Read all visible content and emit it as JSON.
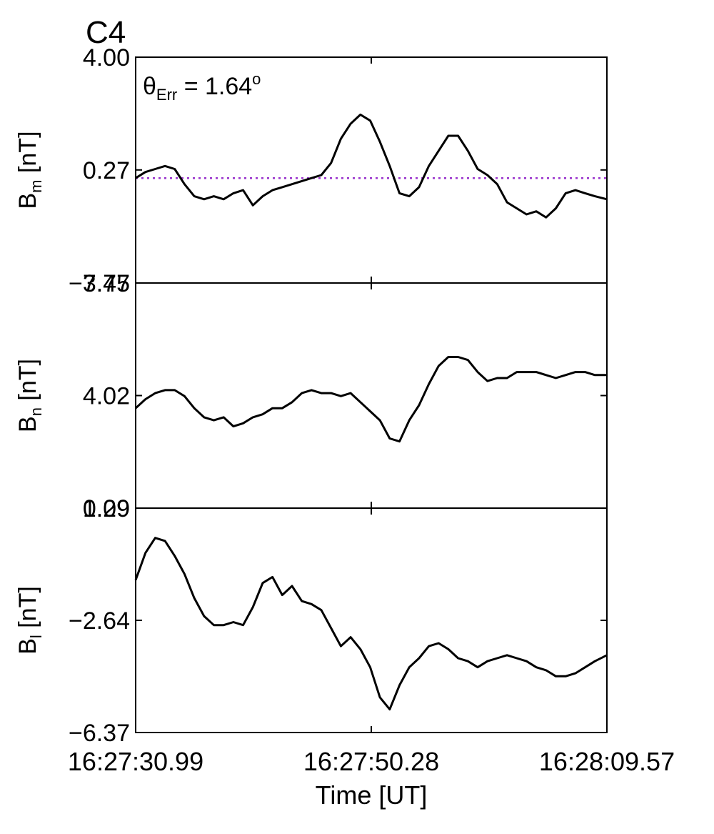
{
  "figure": {
    "title": "C4",
    "title_color": "#e8161b",
    "annotation_symbol": "θ",
    "annotation_sub": "Err",
    "annotation_eq": " =  1.64",
    "annotation_sup": "o"
  },
  "chart_data": [
    {
      "type": "line",
      "ylabel_main": "B",
      "ylabel_sub": "m",
      "ylabel_unit": " [nT]",
      "ylim": [
        -3.47,
        4.0
      ],
      "ytick_labels": [
        "4.00",
        "0.27",
        "−3.47"
      ],
      "ytick_values": [
        4.0,
        0.27,
        -3.47
      ],
      "grid": false,
      "reference_line": {
        "y": 0.0,
        "style": "dotted",
        "color": "#9932cc"
      },
      "line_color": "#000000",
      "x": [
        0,
        0.8,
        1.6,
        2.4,
        3.2,
        4.0,
        4.8,
        5.6,
        6.4,
        7.2,
        8.0,
        8.8,
        9.6,
        10.4,
        11.2,
        12.0,
        12.8,
        13.6,
        14.4,
        15.2,
        16.0,
        16.8,
        17.6,
        18.4,
        19.2,
        20.0,
        20.8,
        21.6,
        22.4,
        23.2,
        24.0,
        24.8,
        25.6,
        26.4,
        27.2,
        28.0,
        28.8,
        29.6,
        30.4,
        31.2,
        32.0,
        32.8,
        33.6,
        34.4,
        35.2,
        36.0,
        36.8,
        37.6,
        38.58
      ],
      "values": [
        0.0,
        0.2,
        0.3,
        0.4,
        0.3,
        -0.2,
        -0.6,
        -0.7,
        -0.6,
        -0.7,
        -0.5,
        -0.4,
        -0.9,
        -0.6,
        -0.4,
        -0.3,
        -0.2,
        -0.1,
        0.0,
        0.1,
        0.5,
        1.3,
        1.8,
        2.1,
        1.9,
        1.2,
        0.4,
        -0.5,
        -0.6,
        -0.3,
        0.4,
        0.9,
        1.4,
        1.4,
        0.9,
        0.3,
        0.1,
        -0.2,
        -0.8,
        -1.0,
        -1.2,
        -1.1,
        -1.3,
        -1.0,
        -0.5,
        -0.4,
        -0.5,
        -0.6,
        -0.7
      ]
    },
    {
      "type": "line",
      "ylabel_main": "B",
      "ylabel_sub": "n",
      "ylabel_unit": " [nT]",
      "ylim": [
        0.29,
        7.75
      ],
      "ytick_labels": [
        "7.75",
        "4.02",
        "0.29"
      ],
      "ytick_values": [
        7.75,
        4.02,
        0.29
      ],
      "grid": false,
      "line_color": "#000000",
      "x": [
        0,
        0.8,
        1.6,
        2.4,
        3.2,
        4.0,
        4.8,
        5.6,
        6.4,
        7.2,
        8.0,
        8.8,
        9.6,
        10.4,
        11.2,
        12.0,
        12.8,
        13.6,
        14.4,
        15.2,
        16.0,
        16.8,
        17.6,
        18.4,
        19.2,
        20.0,
        20.8,
        21.6,
        22.4,
        23.2,
        24.0,
        24.8,
        25.6,
        26.4,
        27.2,
        28.0,
        28.8,
        29.6,
        30.4,
        31.2,
        32.0,
        32.8,
        33.6,
        34.4,
        35.2,
        36.0,
        36.8,
        37.6,
        38.58
      ],
      "values": [
        3.6,
        3.9,
        4.1,
        4.2,
        4.2,
        4.0,
        3.6,
        3.3,
        3.2,
        3.3,
        3.0,
        3.1,
        3.3,
        3.4,
        3.6,
        3.6,
        3.8,
        4.1,
        4.2,
        4.1,
        4.1,
        4.0,
        4.1,
        3.8,
        3.5,
        3.2,
        2.6,
        2.5,
        3.2,
        3.7,
        4.4,
        5.0,
        5.3,
        5.3,
        5.2,
        4.8,
        4.5,
        4.6,
        4.6,
        4.8,
        4.8,
        4.8,
        4.7,
        4.6,
        4.7,
        4.8,
        4.8,
        4.7,
        4.7
      ]
    },
    {
      "type": "line",
      "ylabel_main": "B",
      "ylabel_sub": "l",
      "ylabel_unit": " [nT]",
      "ylim": [
        -6.37,
        1.09
      ],
      "ytick_labels": [
        "1.09",
        "−2.64",
        "−6.37"
      ],
      "ytick_values": [
        1.09,
        -2.64,
        -6.37
      ],
      "grid": false,
      "line_color": "#000000",
      "xlabel": "Time [UT]",
      "xtick_labels": [
        "16:27:30.99",
        "16:27:50.28",
        "16:28:09.57"
      ],
      "xtick_values": [
        0,
        19.29,
        38.58
      ],
      "x": [
        0,
        0.8,
        1.6,
        2.4,
        3.2,
        4.0,
        4.8,
        5.6,
        6.4,
        7.2,
        8.0,
        8.8,
        9.6,
        10.4,
        11.2,
        12.0,
        12.8,
        13.6,
        14.4,
        15.2,
        16.0,
        16.8,
        17.6,
        18.4,
        19.2,
        20.0,
        20.8,
        21.6,
        22.4,
        23.2,
        24.0,
        24.8,
        25.6,
        26.4,
        27.2,
        28.0,
        28.8,
        29.6,
        30.4,
        31.2,
        32.0,
        32.8,
        33.6,
        34.4,
        35.2,
        36.0,
        36.8,
        37.6,
        38.58
      ],
      "values": [
        -1.3,
        -0.4,
        0.1,
        0.0,
        -0.5,
        -1.1,
        -1.9,
        -2.5,
        -2.8,
        -2.8,
        -2.7,
        -2.8,
        -2.2,
        -1.4,
        -1.2,
        -1.8,
        -1.5,
        -2.0,
        -2.1,
        -2.3,
        -2.9,
        -3.5,
        -3.2,
        -3.6,
        -4.2,
        -5.2,
        -5.6,
        -4.8,
        -4.2,
        -3.9,
        -3.5,
        -3.4,
        -3.6,
        -3.9,
        -4.0,
        -4.2,
        -4.0,
        -3.9,
        -3.8,
        -3.9,
        -4.0,
        -4.2,
        -4.3,
        -4.5,
        -4.5,
        -4.4,
        -4.2,
        -4.0,
        -3.8
      ]
    }
  ]
}
